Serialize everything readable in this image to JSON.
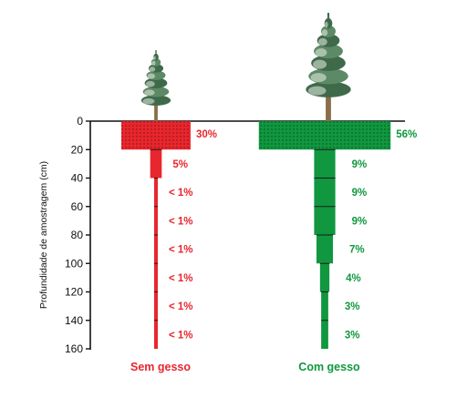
{
  "colors": {
    "sem_gesso": "#e8262d",
    "com_gesso": "#10973f",
    "axis": "#111111"
  },
  "icons": [
    "pine-tree-icon-small",
    "pine-tree-icon-large"
  ],
  "chart_data": {
    "type": "bar",
    "orientation": "horizontal-symmetric",
    "ylabel": "Profundidade de amostragem (cm)",
    "ylim": [
      0,
      160
    ],
    "y_inverted": true,
    "yticks": [
      0,
      20,
      40,
      60,
      80,
      100,
      120,
      140,
      160
    ],
    "layers": [
      {
        "from": 0,
        "to": 20
      },
      {
        "from": 20,
        "to": 40
      },
      {
        "from": 40,
        "to": 60
      },
      {
        "from": 60,
        "to": 80
      },
      {
        "from": 80,
        "to": 100
      },
      {
        "from": 100,
        "to": 120
      },
      {
        "from": 120,
        "to": 140
      },
      {
        "from": 140,
        "to": 160
      }
    ],
    "series": [
      {
        "name": "Sem gesso",
        "values": [
          30,
          5,
          1,
          1,
          1,
          1,
          1,
          1
        ],
        "labels": [
          "30%",
          "5%",
          "< 1%",
          "< 1%",
          "< 1%",
          "< 1%",
          "< 1%",
          "< 1%"
        ],
        "color": "#e8262d"
      },
      {
        "name": "Com gesso",
        "values": [
          56,
          9,
          9,
          9,
          7,
          4,
          3,
          3
        ],
        "labels": [
          "56%",
          "9%",
          "9%",
          "9%",
          "7%",
          "4%",
          "3%",
          "3%"
        ],
        "color": "#10973f"
      }
    ]
  }
}
